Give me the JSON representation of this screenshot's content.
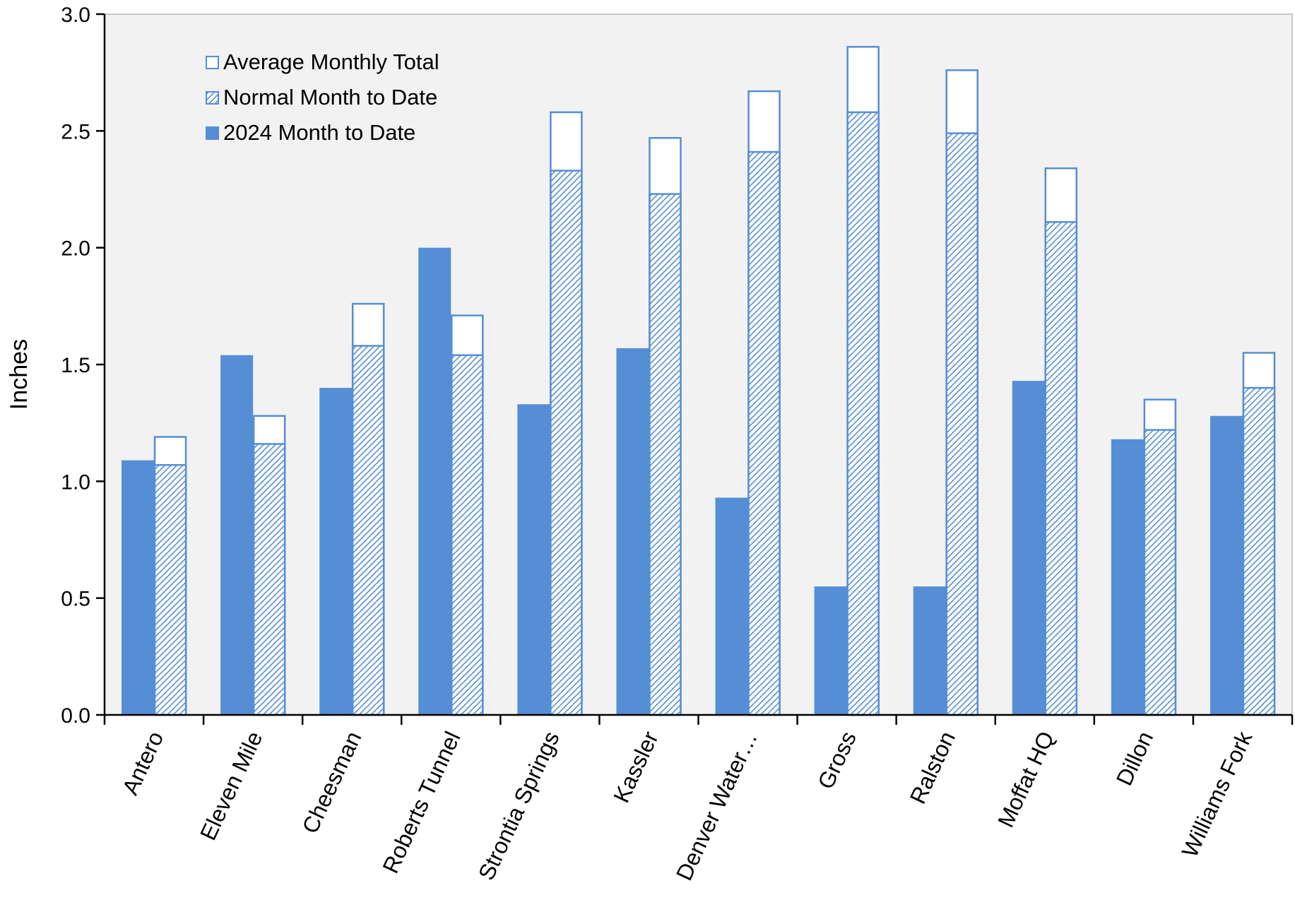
{
  "chart_data": {
    "type": "bar",
    "title": "",
    "xlabel": "",
    "ylabel": "Inches",
    "ylim": [
      0,
      3.0
    ],
    "yticks": [
      "0.0",
      "0.5",
      "1.0",
      "1.5",
      "2.0",
      "2.5",
      "3.0"
    ],
    "grid": false,
    "legend_position": "top-left",
    "categories": [
      "Antero",
      "Eleven Mile",
      "Cheesman",
      "Roberts Tunnel",
      "Strontia Springs",
      "Kassler",
      "Denver Water…",
      "Gross",
      "Ralston",
      "Moffat HQ",
      "Dillon",
      "Williams Fork"
    ],
    "series": [
      {
        "name": "Average Monthly Total",
        "values": [
          1.19,
          1.28,
          1.76,
          1.71,
          2.58,
          2.47,
          2.67,
          2.86,
          2.76,
          2.34,
          1.35,
          1.55
        ]
      },
      {
        "name": "Normal Month to Date",
        "values": [
          1.07,
          1.16,
          1.58,
          1.54,
          2.33,
          2.23,
          2.41,
          2.58,
          2.49,
          2.11,
          1.22,
          1.4
        ]
      },
      {
        "name": "2024 Month to Date",
        "values": [
          1.09,
          1.54,
          1.4,
          2.0,
          1.33,
          1.57,
          0.93,
          0.55,
          0.55,
          1.43,
          1.18,
          1.28
        ]
      }
    ],
    "colors": {
      "bar_fill": "#558ED5",
      "bar_outline": "#558ED5",
      "plot_background": "#F2F2F2",
      "axis": "#000000",
      "hatch_line": "#558ED5",
      "hatch_bg": "#FFFFFF"
    }
  }
}
